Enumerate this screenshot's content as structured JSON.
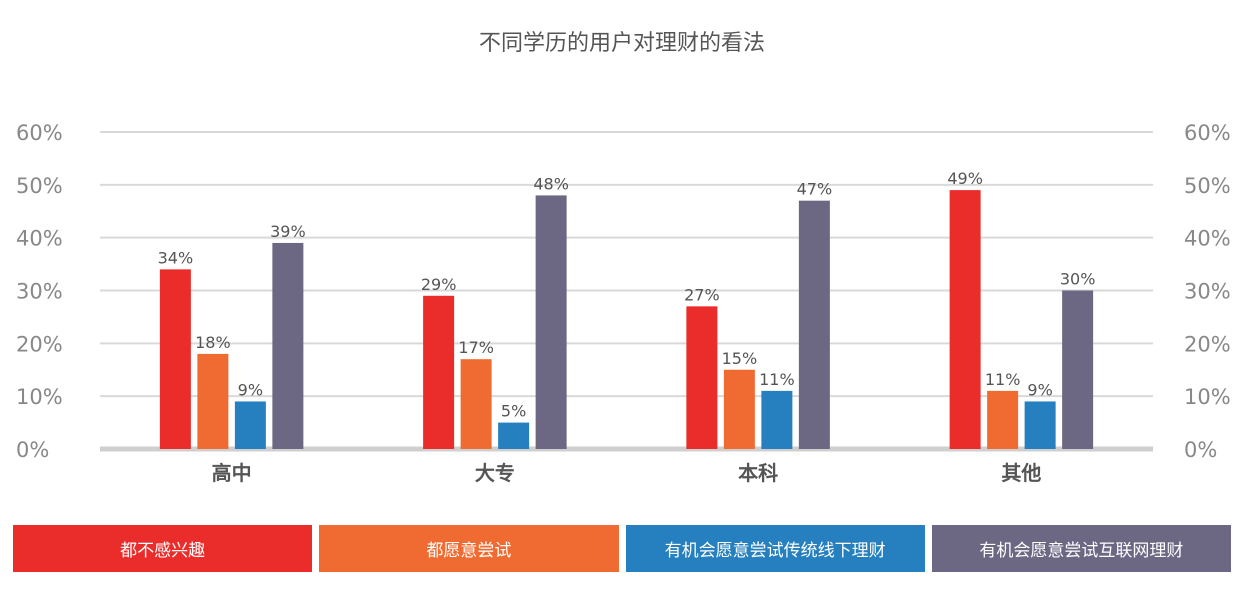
{
  "chart_data": {
    "type": "bar",
    "title": "不同学历的用户对理财的看法",
    "categories": [
      "高中",
      "大专",
      "本科",
      "其他"
    ],
    "series": [
      {
        "name": "都不感兴趣",
        "color": "#ea2c2a",
        "values": [
          34,
          29,
          27,
          49
        ],
        "labels": [
          "34%",
          "29%",
          "27%",
          "49%"
        ]
      },
      {
        "name": "都愿意尝试",
        "color": "#f06b31",
        "values": [
          18,
          17,
          15,
          11
        ],
        "labels": [
          "18%",
          "17%",
          "15%",
          "11%"
        ]
      },
      {
        "name": "有机会愿意尝试传统线下理财",
        "color": "#2680bf",
        "values": [
          9,
          5,
          11,
          9
        ],
        "labels": [
          "9%",
          "5%",
          "11%",
          "9%"
        ]
      },
      {
        "name": "有机会愿意尝试互联网理财",
        "color": "#6c6884",
        "values": [
          39,
          48,
          47,
          30
        ],
        "labels": [
          "39%",
          "48%",
          "47%",
          "30%"
        ]
      }
    ],
    "ylim": [
      0,
      60
    ],
    "yticks": [
      "0%",
      "10%",
      "20%",
      "30%",
      "40%",
      "50%",
      "60%"
    ],
    "grid": true,
    "legend_position": "bottom"
  }
}
